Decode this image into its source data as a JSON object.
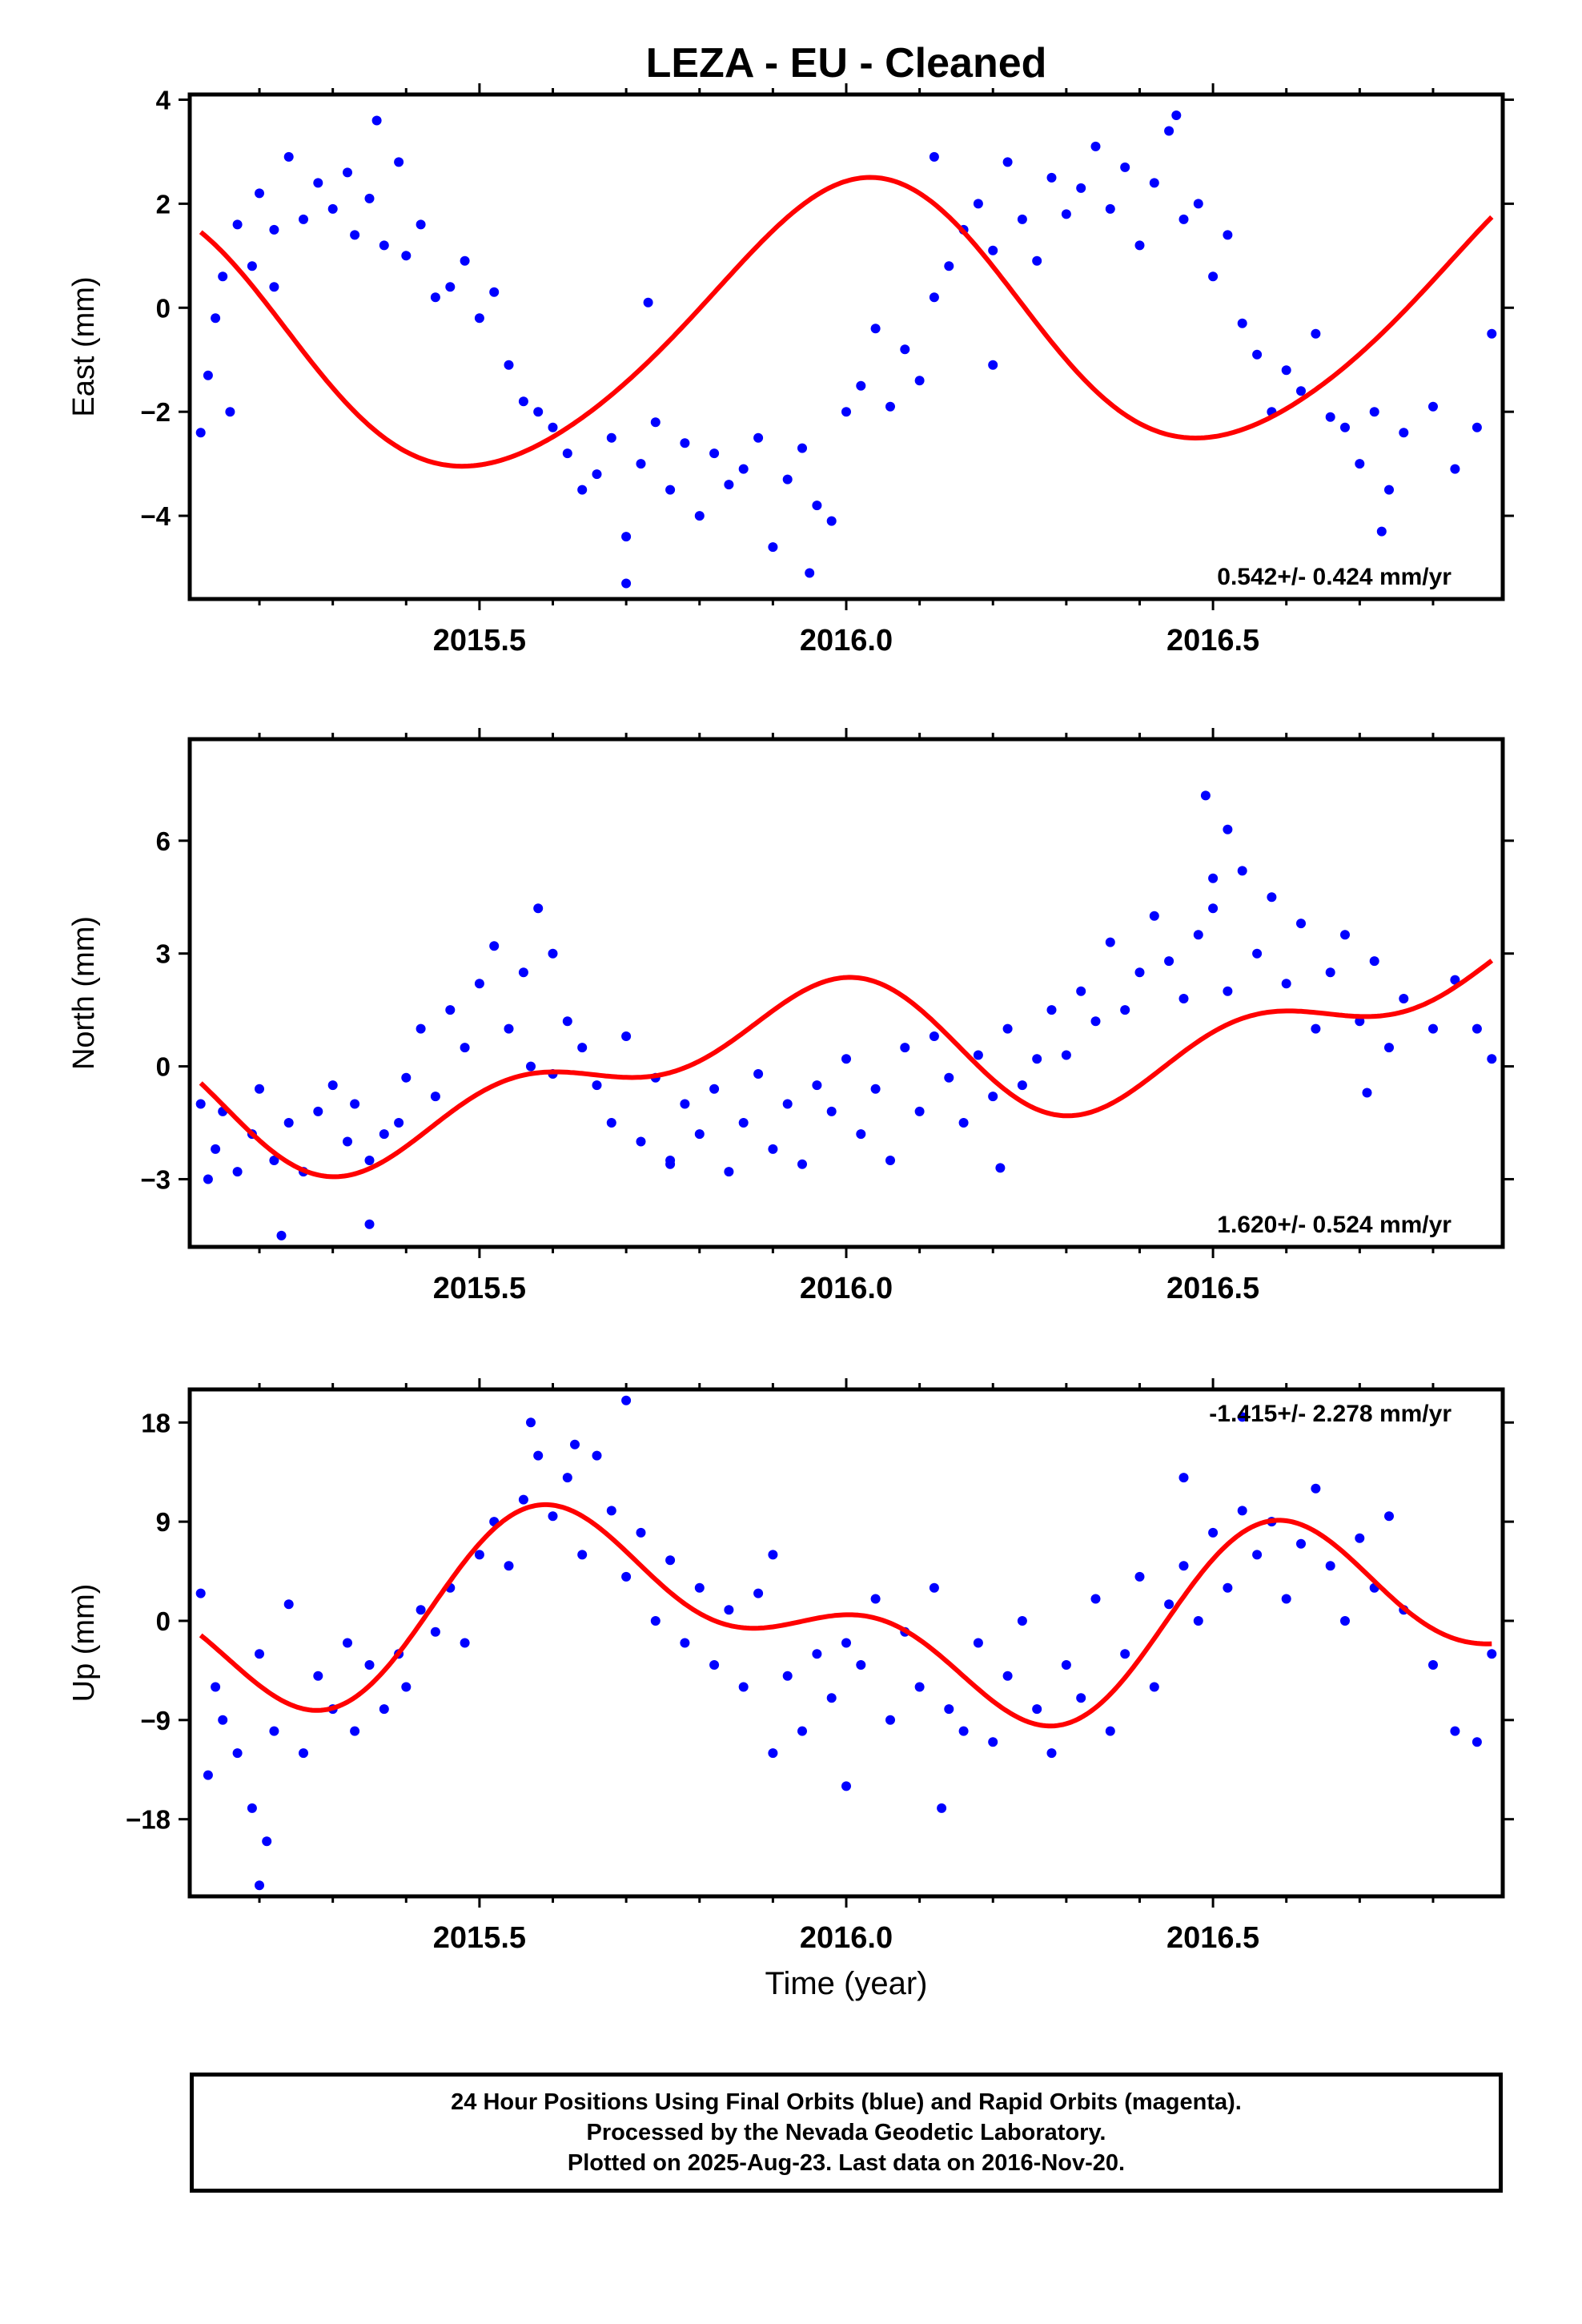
{
  "chart_data": [
    {
      "type": "scatter",
      "panel": "east",
      "title": "LEZA  - EU - Cleaned",
      "ylabel": "East (mm)",
      "xlabel": "",
      "xlim": [
        2015.105,
        2016.895
      ],
      "ylim": [
        -5.6,
        4.1
      ],
      "yticks": [
        -4,
        -2,
        0,
        2,
        4
      ],
      "xticks": [
        2015.5,
        2016.0,
        2016.5
      ],
      "xtick_labels": [
        "2015.5",
        "2016.0",
        "2016.5"
      ],
      "rate_label": "0.542+/- 0.424 mm/yr",
      "rate_position": "bottom-right",
      "model": {
        "mean": -0.3,
        "rate": 0.542,
        "amp1": 2.6,
        "ph1": 1.5,
        "amp2": 0.25,
        "ph2": 0.6
      },
      "series": [
        {
          "name": "",
          "color": "#0000ff",
          "x": [
            2015.12,
            2015.13,
            2015.14,
            2015.15,
            2015.17,
            2015.19,
            2015.2,
            2015.22,
            2015.24,
            2015.26,
            2015.28,
            2015.3,
            2015.32,
            2015.33,
            2015.35,
            2015.37,
            2015.39,
            2015.4,
            2015.42,
            2015.44,
            2015.46,
            2015.48,
            2015.5,
            2015.52,
            2015.54,
            2015.56,
            2015.58,
            2015.6,
            2015.62,
            2015.64,
            2015.66,
            2015.68,
            2015.7,
            2015.72,
            2015.74,
            2015.76,
            2015.78,
            2015.8,
            2015.82,
            2015.84,
            2015.86,
            2015.88,
            2015.9,
            2015.92,
            2015.94,
            2015.96,
            2015.98,
            2016.0,
            2016.02,
            2016.04,
            2016.06,
            2016.08,
            2016.1,
            2016.12,
            2016.14,
            2016.16,
            2016.18,
            2016.2,
            2016.22,
            2016.24,
            2016.26,
            2016.28,
            2016.3,
            2016.32,
            2016.34,
            2016.36,
            2016.38,
            2016.4,
            2016.42,
            2016.44,
            2016.46,
            2016.48,
            2016.5,
            2016.52,
            2016.54,
            2016.56,
            2016.58,
            2016.6,
            2016.62,
            2016.64,
            2016.66,
            2016.68,
            2016.7,
            2016.72,
            2016.74,
            2016.76,
            2016.8,
            2016.83,
            2016.86,
            2016.88,
            2015.22,
            2015.36,
            2015.7,
            2015.95,
            2016.2,
            2016.45,
            2016.73,
            2015.73,
            2016.12,
            2015.16
          ],
          "y": [
            -2.4,
            -1.3,
            -0.2,
            0.6,
            1.6,
            0.8,
            2.2,
            1.5,
            2.9,
            1.7,
            2.4,
            1.9,
            2.6,
            1.4,
            2.1,
            1.2,
            2.8,
            1.0,
            1.6,
            0.2,
            0.4,
            0.9,
            -0.2,
            0.3,
            -1.1,
            -1.8,
            -2.0,
            -2.3,
            -2.8,
            -3.5,
            -3.2,
            -2.5,
            -4.4,
            -3.0,
            -2.2,
            -3.5,
            -2.6,
            -4.0,
            -2.8,
            -3.4,
            -3.1,
            -2.5,
            -4.6,
            -3.3,
            -2.7,
            -3.8,
            -4.1,
            -2.0,
            -1.5,
            -0.4,
            -1.9,
            -0.8,
            -1.4,
            0.2,
            0.8,
            1.5,
            2.0,
            1.1,
            2.8,
            1.7,
            0.9,
            2.5,
            1.8,
            2.3,
            3.1,
            1.9,
            2.7,
            1.2,
            2.4,
            3.4,
            1.7,
            2.0,
            0.6,
            1.4,
            -0.3,
            -0.9,
            -2.0,
            -1.2,
            -1.6,
            -0.5,
            -2.1,
            -2.3,
            -3.0,
            -2.0,
            -3.5,
            -2.4,
            -1.9,
            -3.1,
            -2.3,
            -0.5,
            0.4,
            3.6,
            -5.3,
            -5.1,
            -1.1,
            3.7,
            -4.3,
            0.1,
            2.9,
            -2.0
          ]
        },
        {
          "name": "",
          "color": "#ff0000",
          "kind": "line"
        }
      ]
    },
    {
      "type": "scatter",
      "panel": "north",
      "ylabel": "North (mm)",
      "xlabel": "",
      "xlim": [
        2015.105,
        2016.895
      ],
      "ylim": [
        -4.8,
        8.7
      ],
      "yticks": [
        -3,
        0,
        3,
        6
      ],
      "xticks": [
        2015.5,
        2016.0,
        2016.5
      ],
      "xtick_labels": [
        "2015.5",
        "2016.0",
        "2016.5"
      ],
      "rate_label": "1.620+/- 0.524 mm/yr",
      "rate_position": "bottom-right",
      "model": {
        "mean": 0.3,
        "rate": 1.62,
        "amp1": 1.4,
        "ph1": 2.2,
        "amp2": 1.0,
        "ph2": 1.2
      },
      "series": [
        {
          "name": "",
          "color": "#0000ff",
          "x": [
            2015.12,
            2015.13,
            2015.14,
            2015.15,
            2015.17,
            2015.19,
            2015.2,
            2015.22,
            2015.24,
            2015.26,
            2015.28,
            2015.3,
            2015.32,
            2015.33,
            2015.35,
            2015.37,
            2015.39,
            2015.4,
            2015.42,
            2015.44,
            2015.46,
            2015.48,
            2015.5,
            2015.52,
            2015.54,
            2015.56,
            2015.58,
            2015.6,
            2015.62,
            2015.64,
            2015.66,
            2015.68,
            2015.7,
            2015.72,
            2015.74,
            2015.76,
            2015.78,
            2015.8,
            2015.82,
            2015.84,
            2015.86,
            2015.88,
            2015.9,
            2015.92,
            2015.94,
            2015.96,
            2015.98,
            2016.0,
            2016.02,
            2016.04,
            2016.06,
            2016.08,
            2016.1,
            2016.12,
            2016.14,
            2016.16,
            2016.18,
            2016.2,
            2016.22,
            2016.24,
            2016.26,
            2016.28,
            2016.3,
            2016.32,
            2016.34,
            2016.36,
            2016.38,
            2016.4,
            2016.42,
            2016.44,
            2016.46,
            2016.48,
            2016.5,
            2016.52,
            2016.54,
            2016.56,
            2016.58,
            2016.6,
            2016.62,
            2016.64,
            2016.66,
            2016.68,
            2016.7,
            2016.72,
            2016.74,
            2016.76,
            2016.8,
            2016.83,
            2016.86,
            2016.88,
            2015.23,
            2015.35,
            2015.57,
            2015.6,
            2016.49,
            2016.52,
            2016.5,
            2015.76,
            2016.21,
            2016.71
          ],
          "y": [
            -1.0,
            -3.0,
            -2.2,
            -1.2,
            -2.8,
            -1.8,
            -0.6,
            -2.5,
            -1.5,
            -2.8,
            -1.2,
            -0.5,
            -2.0,
            -1.0,
            -2.5,
            -1.8,
            -1.5,
            -0.3,
            1.0,
            -0.8,
            1.5,
            0.5,
            2.2,
            3.2,
            1.0,
            2.5,
            4.2,
            3.0,
            1.2,
            0.5,
            -0.5,
            -1.5,
            0.8,
            -2.0,
            -0.3,
            -2.5,
            -1.0,
            -1.8,
            -0.6,
            -2.8,
            -1.5,
            -0.2,
            -2.2,
            -1.0,
            -2.6,
            -0.5,
            -1.2,
            0.2,
            -1.8,
            -0.6,
            -2.5,
            0.5,
            -1.2,
            0.8,
            -0.3,
            -1.5,
            0.3,
            -0.8,
            1.0,
            -0.5,
            0.2,
            1.5,
            0.3,
            2.0,
            1.2,
            3.3,
            1.5,
            2.5,
            4.0,
            2.8,
            1.8,
            3.5,
            4.2,
            2.0,
            5.2,
            3.0,
            4.5,
            2.2,
            3.8,
            1.0,
            2.5,
            3.5,
            1.2,
            2.8,
            0.5,
            1.8,
            1.0,
            2.3,
            1.0,
            0.2,
            -4.5,
            -4.2,
            0.0,
            -0.2,
            7.2,
            6.3,
            5.0,
            -2.6,
            -2.7,
            -0.7
          ]
        },
        {
          "name": "",
          "color": "#ff0000",
          "kind": "line"
        }
      ]
    },
    {
      "type": "scatter",
      "panel": "up",
      "ylabel": "Up (mm)",
      "xlabel": "Time (year)",
      "xlim": [
        2015.105,
        2016.895
      ],
      "ylim": [
        -25.0,
        21.0
      ],
      "yticks": [
        -18,
        -9,
        0,
        9,
        18
      ],
      "xticks": [
        2015.5,
        2016.0,
        2016.5
      ],
      "xtick_labels": [
        "2015.5",
        "2016.0",
        "2016.5"
      ],
      "rate_label": "-1.415+/- 2.278 mm/yr",
      "rate_position": "top-right",
      "model": {
        "mean": 0.2,
        "rate": -1.415,
        "amp1": 6.5,
        "ph1": 3.6,
        "amp2": 4.5,
        "ph2": 0.8
      },
      "series": [
        {
          "name": "",
          "color": "#0000ff",
          "x": [
            2015.12,
            2015.13,
            2015.14,
            2015.15,
            2015.17,
            2015.19,
            2015.2,
            2015.22,
            2015.24,
            2015.26,
            2015.28,
            2015.3,
            2015.32,
            2015.33,
            2015.35,
            2015.37,
            2015.39,
            2015.4,
            2015.42,
            2015.44,
            2015.46,
            2015.48,
            2015.5,
            2015.52,
            2015.54,
            2015.56,
            2015.58,
            2015.6,
            2015.62,
            2015.64,
            2015.66,
            2015.68,
            2015.7,
            2015.72,
            2015.74,
            2015.76,
            2015.78,
            2015.8,
            2015.82,
            2015.84,
            2015.86,
            2015.88,
            2015.9,
            2015.92,
            2015.94,
            2015.96,
            2015.98,
            2016.0,
            2016.02,
            2016.04,
            2016.06,
            2016.08,
            2016.1,
            2016.12,
            2016.14,
            2016.16,
            2016.18,
            2016.2,
            2016.22,
            2016.24,
            2016.26,
            2016.28,
            2016.3,
            2016.32,
            2016.34,
            2016.36,
            2016.38,
            2016.4,
            2016.42,
            2016.44,
            2016.46,
            2016.48,
            2016.5,
            2016.52,
            2016.54,
            2016.56,
            2016.58,
            2016.6,
            2016.62,
            2016.64,
            2016.66,
            2016.68,
            2016.7,
            2016.72,
            2016.74,
            2016.76,
            2016.8,
            2016.83,
            2016.86,
            2016.88,
            2015.2,
            2015.21,
            2015.57,
            2015.7,
            2015.63,
            2015.9,
            2016.0,
            2016.13,
            2016.46,
            2016.54
          ],
          "y": [
            2.5,
            -14.0,
            -6.0,
            -9.0,
            -12.0,
            -17.0,
            -3.0,
            -10.0,
            1.5,
            -12.0,
            -5.0,
            -8.0,
            -2.0,
            -10.0,
            -4.0,
            -8.0,
            -3.0,
            -6.0,
            1.0,
            -1.0,
            3.0,
            -2.0,
            6.0,
            9.0,
            5.0,
            11.0,
            15.0,
            9.5,
            13.0,
            6.0,
            15.0,
            10.0,
            4.0,
            8.0,
            0.0,
            5.5,
            -2.0,
            3.0,
            -4.0,
            1.0,
            -6.0,
            2.5,
            6.0,
            -5.0,
            -10.0,
            -3.0,
            -7.0,
            -2.0,
            -4.0,
            2.0,
            -9.0,
            -1.0,
            -6.0,
            3.0,
            -8.0,
            -10.0,
            -2.0,
            -11.0,
            -5.0,
            0.0,
            -8.0,
            -12.0,
            -4.0,
            -7.0,
            2.0,
            -10.0,
            -3.0,
            4.0,
            -6.0,
            1.5,
            5.0,
            0.0,
            8.0,
            3.0,
            10.0,
            6.0,
            9.0,
            2.0,
            7.0,
            12.0,
            5.0,
            0.0,
            7.5,
            3.0,
            9.5,
            1.0,
            -4.0,
            -10.0,
            -11.0,
            -3.0,
            -24.0,
            -20.0,
            18.0,
            20.0,
            16.0,
            -12.0,
            -15.0,
            -17.0,
            13.0,
            18.5
          ]
        },
        {
          "name": "",
          "color": "#ff0000",
          "kind": "line"
        }
      ]
    }
  ],
  "footer": {
    "line1": "24 Hour Positions Using Final Orbits (blue) and Rapid Orbits (magenta).",
    "line2": "Processed by the Nevada Geodetic Laboratory.",
    "line3": "Plotted on 2025-Aug-23. Last data on 2016-Nov-20."
  }
}
